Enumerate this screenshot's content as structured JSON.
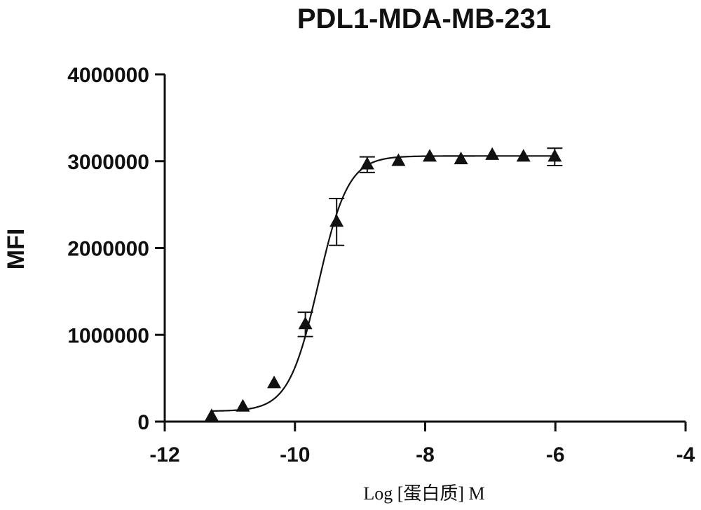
{
  "chart_data": {
    "type": "scatter",
    "title": "PDL1-MDA-MB-231",
    "xlabel": "Log [蛋白质] M",
    "ylabel": "MFI",
    "xlim": [
      -12,
      -4
    ],
    "ylim": [
      0,
      4000000
    ],
    "x_ticks": [
      -12,
      -10,
      -8,
      -6,
      -4
    ],
    "x_tick_labels": [
      "-12",
      "-10",
      "-8",
      "-6",
      "-4"
    ],
    "y_ticks": [
      0,
      1000000,
      2000000,
      3000000,
      4000000
    ],
    "y_tick_labels": [
      "0",
      "1000000",
      "2000000",
      "3000000",
      "4000000"
    ],
    "grid": false,
    "marker": "triangle",
    "series": [
      {
        "x": [
          -11.28,
          -10.8,
          -10.32,
          -9.84,
          -9.36,
          -8.89,
          -8.41,
          -7.93,
          -7.45,
          -6.97,
          -6.49,
          -6.01
        ],
        "y": [
          60000,
          170000,
          440000,
          1120000,
          2300000,
          2960000,
          3000000,
          3050000,
          3020000,
          3070000,
          3050000,
          3050000
        ],
        "error": [
          0,
          0,
          0,
          140000,
          270000,
          90000,
          0,
          0,
          0,
          0,
          0,
          100000
        ]
      }
    ],
    "fit": {
      "model": "four-parameter logistic",
      "bottom": 120000,
      "top": 3060000,
      "log_ec50": -9.64,
      "hill_slope": 1.9,
      "x_range": [
        -11.28,
        -6.01
      ]
    }
  }
}
